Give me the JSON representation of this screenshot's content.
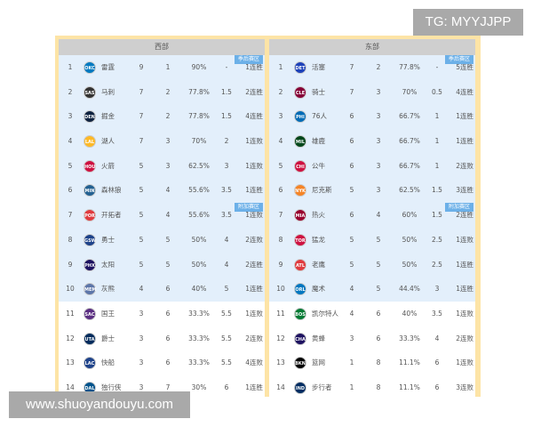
{
  "watermark_top": "TG: MYYJJPP",
  "watermark_bottom": "www.shuoyandouyu.com",
  "west": {
    "title": "西部",
    "playoff_badge": "季后赛区",
    "playin_badge": "附加赛区",
    "rows": [
      {
        "rank": "1",
        "abbr": "OKC",
        "color": "#007ac1",
        "name": "雷霆",
        "w": "9",
        "l": "1",
        "pct": "90%",
        "gb": "-",
        "streak": "1连胜"
      },
      {
        "rank": "2",
        "abbr": "SAS",
        "color": "#333333",
        "name": "马刺",
        "w": "7",
        "l": "2",
        "pct": "77.8%",
        "gb": "1.5",
        "streak": "2连胜"
      },
      {
        "rank": "3",
        "abbr": "DEN",
        "color": "#0e2240",
        "name": "掘金",
        "w": "7",
        "l": "2",
        "pct": "77.8%",
        "gb": "1.5",
        "streak": "4连胜"
      },
      {
        "rank": "4",
        "abbr": "LAL",
        "color": "#fdb927",
        "name": "湖人",
        "w": "7",
        "l": "3",
        "pct": "70%",
        "gb": "2",
        "streak": "1连败"
      },
      {
        "rank": "5",
        "abbr": "HOU",
        "color": "#ce1141",
        "name": "火箭",
        "w": "5",
        "l": "3",
        "pct": "62.5%",
        "gb": "3",
        "streak": "1连败"
      },
      {
        "rank": "6",
        "abbr": "MIN",
        "color": "#236192",
        "name": "森林狼",
        "w": "5",
        "l": "4",
        "pct": "55.6%",
        "gb": "3.5",
        "streak": "1连胜"
      },
      {
        "rank": "7",
        "abbr": "POR",
        "color": "#e03a3e",
        "name": "开拓者",
        "w": "5",
        "l": "4",
        "pct": "55.6%",
        "gb": "3.5",
        "streak": "1连败"
      },
      {
        "rank": "8",
        "abbr": "GSW",
        "color": "#1d428a",
        "name": "勇士",
        "w": "5",
        "l": "5",
        "pct": "50%",
        "gb": "4",
        "streak": "2连败"
      },
      {
        "rank": "9",
        "abbr": "PHX",
        "color": "#1d1160",
        "name": "太阳",
        "w": "5",
        "l": "5",
        "pct": "50%",
        "gb": "4",
        "streak": "2连胜"
      },
      {
        "rank": "10",
        "abbr": "MEM",
        "color": "#5d76a9",
        "name": "灰熊",
        "w": "4",
        "l": "6",
        "pct": "40%",
        "gb": "5",
        "streak": "1连胜"
      },
      {
        "rank": "11",
        "abbr": "SAC",
        "color": "#5a2d81",
        "name": "国王",
        "w": "3",
        "l": "6",
        "pct": "33.3%",
        "gb": "5.5",
        "streak": "1连败"
      },
      {
        "rank": "12",
        "abbr": "UTA",
        "color": "#002b5c",
        "name": "爵士",
        "w": "3",
        "l": "6",
        "pct": "33.3%",
        "gb": "5.5",
        "streak": "2连败"
      },
      {
        "rank": "13",
        "abbr": "LAC",
        "color": "#1d428a",
        "name": "快船",
        "w": "3",
        "l": "6",
        "pct": "33.3%",
        "gb": "5.5",
        "streak": "4连败"
      },
      {
        "rank": "14",
        "abbr": "DAL",
        "color": "#00538c",
        "name": "独行侠",
        "w": "3",
        "l": "7",
        "pct": "30%",
        "gb": "6",
        "streak": "1连胜"
      }
    ]
  },
  "east": {
    "title": "东部",
    "playoff_badge": "季后赛区",
    "playin_badge": "附加赛区",
    "rows": [
      {
        "rank": "1",
        "abbr": "DET",
        "color": "#1d42ba",
        "name": "活塞",
        "w": "7",
        "l": "2",
        "pct": "77.8%",
        "gb": "-",
        "streak": "5连胜"
      },
      {
        "rank": "2",
        "abbr": "CLE",
        "color": "#860038",
        "name": "骑士",
        "w": "7",
        "l": "3",
        "pct": "70%",
        "gb": "0.5",
        "streak": "4连胜"
      },
      {
        "rank": "3",
        "abbr": "PHI",
        "color": "#006bb6",
        "name": "76人",
        "w": "6",
        "l": "3",
        "pct": "66.7%",
        "gb": "1",
        "streak": "1连胜"
      },
      {
        "rank": "4",
        "abbr": "MIL",
        "color": "#00471b",
        "name": "雄鹿",
        "w": "6",
        "l": "3",
        "pct": "66.7%",
        "gb": "1",
        "streak": "1连胜"
      },
      {
        "rank": "5",
        "abbr": "CHI",
        "color": "#ce1141",
        "name": "公牛",
        "w": "6",
        "l": "3",
        "pct": "66.7%",
        "gb": "1",
        "streak": "2连败"
      },
      {
        "rank": "6",
        "abbr": "NYK",
        "color": "#f58426",
        "name": "尼克斯",
        "w": "5",
        "l": "3",
        "pct": "62.5%",
        "gb": "1.5",
        "streak": "3连胜"
      },
      {
        "rank": "7",
        "abbr": "MIA",
        "color": "#98002e",
        "name": "热火",
        "w": "6",
        "l": "4",
        "pct": "60%",
        "gb": "1.5",
        "streak": "2连胜"
      },
      {
        "rank": "8",
        "abbr": "TOR",
        "color": "#ce1141",
        "name": "猛龙",
        "w": "5",
        "l": "5",
        "pct": "50%",
        "gb": "2.5",
        "streak": "1连败"
      },
      {
        "rank": "9",
        "abbr": "ATL",
        "color": "#e03a3e",
        "name": "老鹰",
        "w": "5",
        "l": "5",
        "pct": "50%",
        "gb": "2.5",
        "streak": "1连胜"
      },
      {
        "rank": "10",
        "abbr": "ORL",
        "color": "#0077c0",
        "name": "魔术",
        "w": "4",
        "l": "5",
        "pct": "44.4%",
        "gb": "3",
        "streak": "1连胜"
      },
      {
        "rank": "11",
        "abbr": "BOS",
        "color": "#007a33",
        "name": "凯尔特人",
        "w": "4",
        "l": "6",
        "pct": "40%",
        "gb": "3.5",
        "streak": "1连败"
      },
      {
        "rank": "12",
        "abbr": "CHA",
        "color": "#1d1160",
        "name": "黄蜂",
        "w": "3",
        "l": "6",
        "pct": "33.3%",
        "gb": "4",
        "streak": "2连败"
      },
      {
        "rank": "13",
        "abbr": "BKN",
        "color": "#000000",
        "name": "篮网",
        "w": "1",
        "l": "8",
        "pct": "11.1%",
        "gb": "6",
        "streak": "1连败"
      },
      {
        "rank": "14",
        "abbr": "IND",
        "color": "#002d62",
        "name": "步行者",
        "w": "1",
        "l": "8",
        "pct": "11.1%",
        "gb": "6",
        "streak": "3连败"
      }
    ]
  }
}
